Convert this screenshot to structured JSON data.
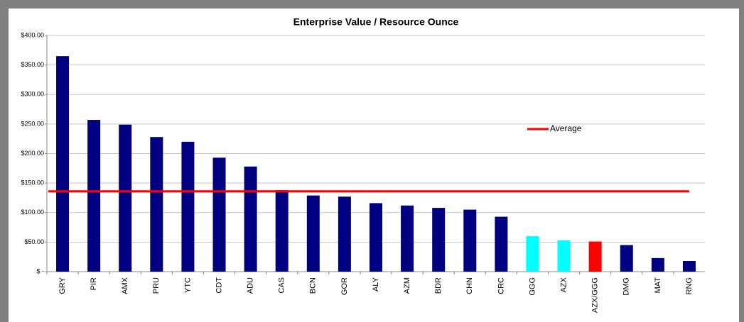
{
  "chart_data": {
    "type": "bar",
    "title": "Enterprise Value / Resource Ounce",
    "categories": [
      "GRY",
      "PIR",
      "AMX",
      "PRU",
      "YTC",
      "CDT",
      "ADU",
      "CAS",
      "BCN",
      "GOR",
      "ALY",
      "AZM",
      "BDR",
      "CHN",
      "CRC",
      "GGG",
      "AZX",
      "AZX/GGG",
      "DMG",
      "MAT",
      "RNG"
    ],
    "values": [
      365,
      257,
      249,
      228,
      220,
      193,
      178,
      138,
      129,
      127,
      116,
      112,
      108,
      105,
      93,
      60,
      53,
      51,
      45,
      23,
      18
    ],
    "colors": [
      "#000080",
      "#000080",
      "#000080",
      "#000080",
      "#000080",
      "#000080",
      "#000080",
      "#000080",
      "#000080",
      "#000080",
      "#000080",
      "#000080",
      "#000080",
      "#000080",
      "#000080",
      "#00ffff",
      "#00ffff",
      "#ff0000",
      "#000080",
      "#000080",
      "#000080"
    ],
    "average": {
      "name": "Average",
      "value": 136,
      "color": "#ff0000"
    },
    "ylim": [
      0,
      400
    ],
    "yticks": [
      {
        "value": 0,
        "label": "$ -"
      },
      {
        "value": 50,
        "label": "$50.00"
      },
      {
        "value": 100,
        "label": "$100.00"
      },
      {
        "value": 150,
        "label": "$150.00"
      },
      {
        "value": 200,
        "label": "$200.00"
      },
      {
        "value": 250,
        "label": "$250.00"
      },
      {
        "value": 300,
        "label": "$300.00"
      },
      {
        "value": 350,
        "label": "$350.00"
      },
      {
        "value": 400,
        "label": "$400.00"
      }
    ],
    "grid": true
  }
}
